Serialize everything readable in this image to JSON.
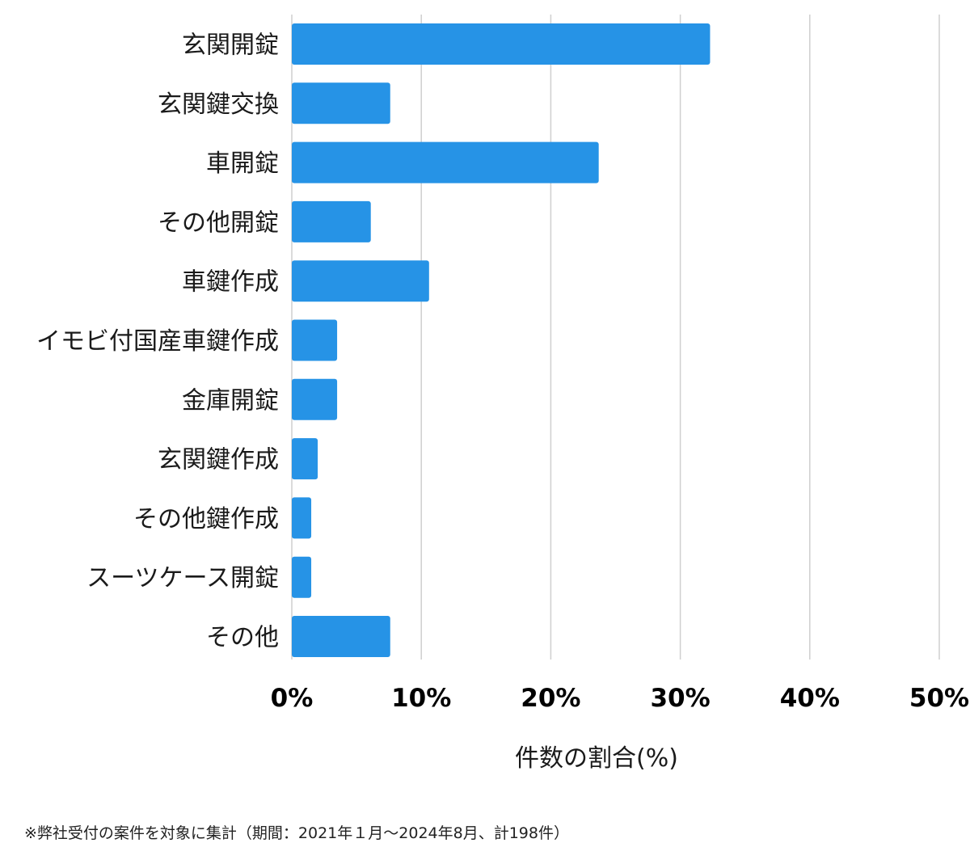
{
  "chart_data": {
    "type": "bar",
    "orientation": "horizontal",
    "categories": [
      "玄関開錠",
      "玄関鍵交換",
      "車開錠",
      "その他開錠",
      "車鍵作成",
      "イモビ付国産車鍵作成",
      "金庫開錠",
      "玄関鍵作成",
      "その他鍵作成",
      "スーツケース開錠",
      "その他"
    ],
    "values": [
      32.3,
      7.6,
      23.7,
      6.1,
      10.6,
      3.5,
      3.5,
      2.0,
      1.5,
      1.5,
      7.6
    ],
    "xlabel": "件数の割合(%)",
    "ylabel": "",
    "xlim": [
      0,
      50
    ],
    "xticks": [
      "0%",
      "10%",
      "20%",
      "30%",
      "40%",
      "50%"
    ],
    "grid": true,
    "bar_color": "#2693e6"
  },
  "footnote": "※弊社受付の案件を対象に集計（期間：2021年１月〜2024年8月、計198件）"
}
